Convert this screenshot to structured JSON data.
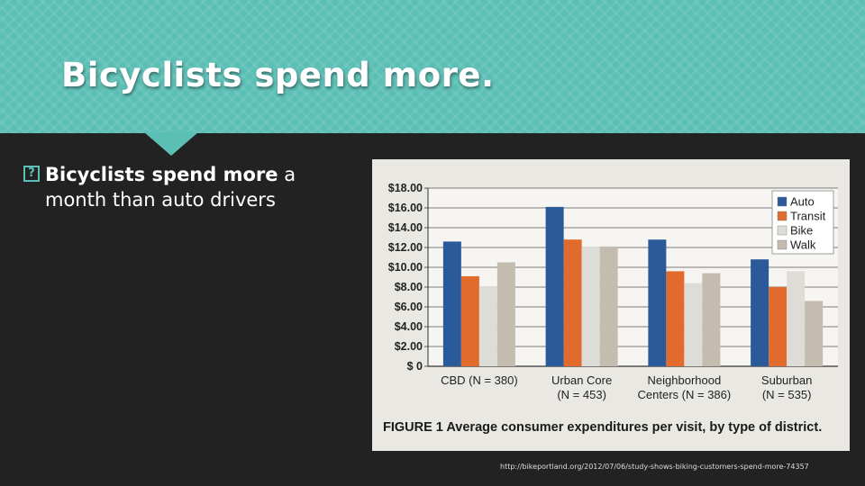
{
  "slide": {
    "title": "Bicyclists spend more.",
    "bullet_icon": "?",
    "bullet_bold": "Bicyclists spend more",
    "bullet_rest": " a month than auto drivers",
    "source": "http://bikeportland.org/2012/07/06/study-shows-biking-customers-spend-more-74357"
  },
  "chart_data": {
    "type": "bar",
    "caption": "FIGURE 1  Average consumer expenditures per visit, by type of district.",
    "categories": [
      [
        "CBD (N = 380)"
      ],
      [
        "Urban Core",
        "(N = 453)"
      ],
      [
        "Neighborhood",
        "Centers (N = 386)"
      ],
      [
        "Suburban",
        "(N = 535)"
      ]
    ],
    "series": [
      {
        "name": "Auto",
        "color": "#2a5a9a",
        "values": [
          12.6,
          16.1,
          12.8,
          10.8
        ]
      },
      {
        "name": "Transit",
        "color": "#e06b2c",
        "values": [
          9.1,
          12.8,
          9.6,
          8.0
        ]
      },
      {
        "name": "Bike",
        "color": "#dedcd6",
        "values": [
          8.1,
          12.1,
          8.4,
          9.6
        ]
      },
      {
        "name": "Walk",
        "color": "#c3bcaf",
        "values": [
          10.5,
          12.1,
          9.4,
          6.6
        ]
      }
    ],
    "y_ticks": [
      "$ 0",
      "$2.00",
      "$4.00",
      "$6.00",
      "$8.00",
      "$10.00",
      "$12.00",
      "$14.00",
      "$16.00",
      "$18.00"
    ],
    "ylim": [
      0,
      18
    ],
    "grid": true,
    "legend": "top-right"
  }
}
